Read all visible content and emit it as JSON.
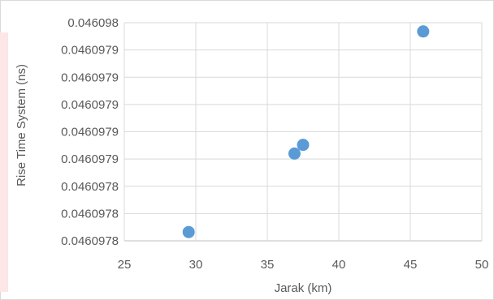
{
  "chart_data": {
    "type": "scatter",
    "title": "",
    "xlabel": "Jarak (km)",
    "ylabel": "Rise Time System (ns)",
    "xlim": [
      25,
      50
    ],
    "x_ticks": [
      "25",
      "30",
      "35",
      "40",
      "45",
      "50"
    ],
    "y_ticks": [
      "0.0460978",
      "0.0460978",
      "0.0460978",
      "0.0460979",
      "0.0460979",
      "0.0460979",
      "0.0460979",
      "0.0460979",
      "0.046098"
    ],
    "grid": true,
    "legend": "none",
    "marker_color": "#5b9bd5",
    "series": [
      {
        "points": [
          {
            "x": 29.5,
            "y": 0.04609776
          },
          {
            "x": 36.9,
            "y": 0.04609785
          },
          {
            "x": 37.5,
            "y": 0.04609786
          },
          {
            "x": 45.9,
            "y": 0.04609799
          }
        ]
      }
    ]
  }
}
